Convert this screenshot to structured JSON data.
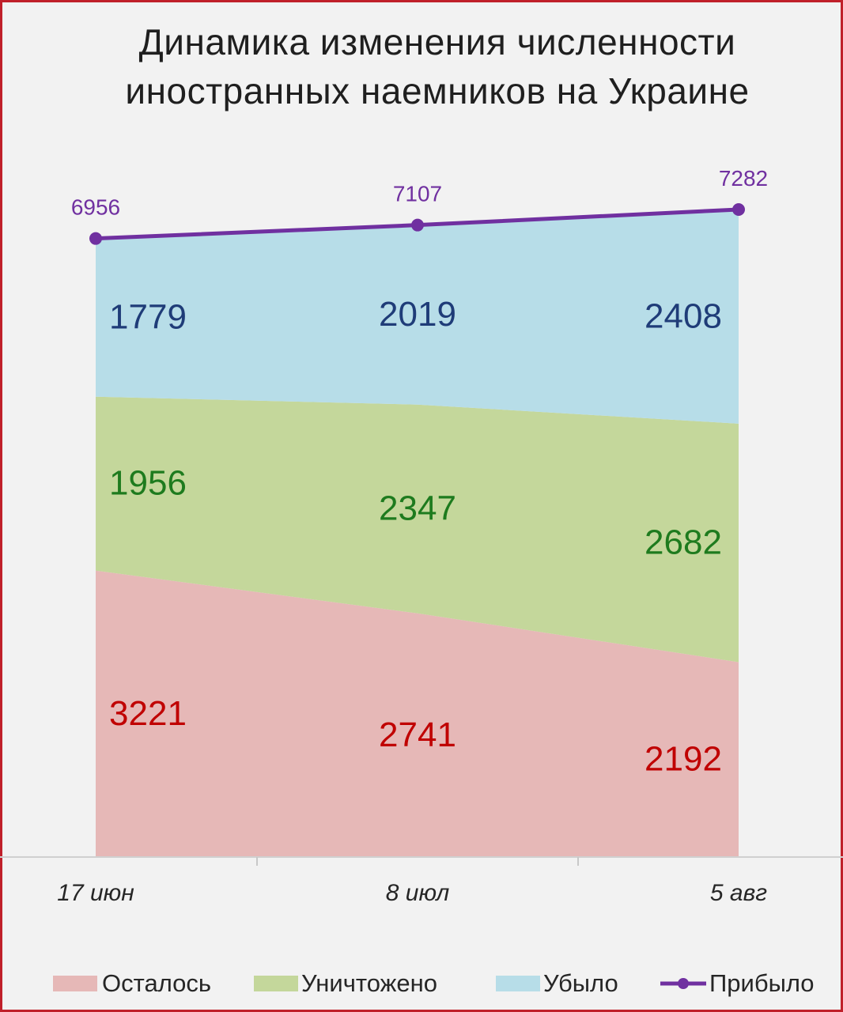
{
  "title_line1": "Динамика изменения численности",
  "title_line2": "иностранных наемников на Украине",
  "chart_data": {
    "type": "area",
    "stacked": true,
    "categories": [
      "17 июн",
      "8 июл",
      "5 авг"
    ],
    "series": [
      {
        "name": "Осталось",
        "values": [
          3221,
          2741,
          2192
        ],
        "color": "#e6b8b7",
        "label_color": "#c00000"
      },
      {
        "name": "Уничтожено",
        "values": [
          1956,
          2347,
          2682
        ],
        "color": "#c4d79b",
        "label_color": "#1e7b1e"
      },
      {
        "name": "Убыло",
        "values": [
          1779,
          2019,
          2408
        ],
        "color": "#b7dde8",
        "label_color": "#1f3c78"
      }
    ],
    "line_series": {
      "name": "Прибыло",
      "values": [
        6956,
        7107,
        7282
      ],
      "color": "#7030a0"
    },
    "ylim": [
      0,
      7282
    ],
    "grid": false,
    "legend_position": "bottom"
  },
  "colors": {
    "border": "#c0202a",
    "background": "#f2f2f2"
  }
}
